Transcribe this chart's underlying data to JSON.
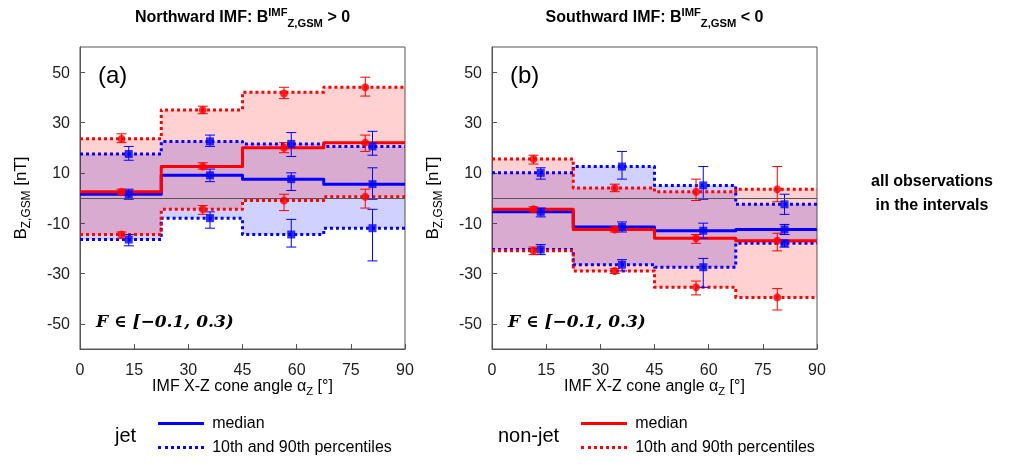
{
  "chart_data": [
    {
      "type": "step",
      "title": "Northward IMF:  B$^{IMF}$$_{Z,GSM}$ > 0",
      "xlabel": "IMF X-Z cone angle α$_{Z}$ [°]",
      "ylabel": "B$_{Z,GSM}$ [nT]",
      "xlim": [
        0,
        90
      ],
      "xticks": [
        0,
        15,
        30,
        45,
        60,
        75,
        90
      ],
      "ylim": [
        -60,
        60
      ],
      "yticks": [
        -50,
        -30,
        -10,
        10,
        30,
        50
      ],
      "grid": false,
      "legend": "bottom",
      "legend_title": "jet",
      "ref_lines": [
        {
          "axis": "y",
          "value": 0,
          "color": "#555555"
        }
      ],
      "annotations": [
        "(a)",
        "F ∈ [−0.1, 0.3)"
      ],
      "series": [
        {
          "name": "median",
          "color": "#0000ff",
          "line_style": "solid",
          "x": [
            0,
            22.5,
            45,
            67.5,
            90
          ],
          "values": [
            1.5,
            9,
            7.5,
            5.5,
            5.5
          ],
          "lower": [
            -16.5,
            -8,
            -14.5,
            -12,
            -12
          ],
          "upper": [
            17.5,
            22.5,
            21.5,
            20.5,
            20.5
          ]
        },
        {
          "name": "10th and 90th percentiles",
          "color": "#0000ff",
          "line_style": "dotted",
          "x": [
            0,
            22.5,
            45,
            67.5,
            90
          ],
          "values": [
            17.5,
            22.5,
            21.5,
            20.5,
            20.5
          ]
        },
        {
          "color": "#0000ff",
          "line_style": "dotted",
          "x": [
            0,
            22.5,
            45,
            67.5,
            90
          ],
          "values": [
            -16.5,
            -8,
            -14.5,
            -12,
            -12
          ]
        },
        {
          "color": "#ff0000",
          "line_style": "solid",
          "x": [
            0,
            22.5,
            45,
            67.5,
            90
          ],
          "values": [
            2.5,
            12.5,
            20,
            22,
            22
          ],
          "lower": [
            -14.5,
            -4.5,
            -1,
            0.5,
            0.5
          ],
          "upper": [
            23.5,
            35,
            42,
            44,
            44
          ]
        },
        {
          "color": "#ff0000",
          "line_style": "dotted",
          "x": [
            0,
            22.5,
            45,
            67.5,
            90
          ],
          "values": [
            23.5,
            35,
            42,
            44,
            44
          ]
        },
        {
          "color": "#ff0000",
          "line_style": "dotted",
          "x": [
            0,
            22.5,
            45,
            67.5,
            90
          ],
          "values": [
            -14.5,
            -4.5,
            -1,
            0.5,
            0.5
          ]
        },
        {
          "type": "scatter",
          "color": "#0000ff",
          "marker": "square",
          "x": [
            13.5,
            13.5,
            13.5,
            36,
            36,
            36,
            58.5,
            58.5,
            58.5,
            81,
            81,
            81
          ],
          "values": [
            1.5,
            17.5,
            -16.5,
            9,
            22.5,
            -8,
            7.5,
            21.5,
            -14.5,
            5.5,
            20.5,
            -12
          ],
          "errors": [
            [
              -0.5,
              3.5
            ],
            [
              15,
              20.5
            ],
            [
              -19,
              -14.5
            ],
            [
              6.5,
              11.5
            ],
            [
              20.5,
              25
            ],
            [
              -12,
              -5.5
            ],
            [
              3,
              10
            ],
            [
              16.5,
              26
            ],
            [
              -19.5,
              -8.5
            ],
            [
              -0.5,
              12
            ],
            [
              17,
              26.5
            ],
            [
              -25,
              -4.5
            ]
          ]
        },
        {
          "type": "scatter",
          "color": "#ff0000",
          "marker": "circle",
          "x": [
            11.5,
            11.5,
            11.5,
            34,
            34,
            34,
            56.5,
            56.5,
            56.5,
            79,
            79,
            79
          ],
          "values": [
            2.5,
            23.5,
            -14.5,
            12.5,
            35,
            -4.5,
            20,
            41.5,
            -1,
            22,
            44,
            0.5
          ],
          "errors": [
            [
              1.5,
              3.5
            ],
            [
              22,
              25.5
            ],
            [
              -16,
              -13.5
            ],
            [
              11.5,
              14
            ],
            [
              33.5,
              36.5
            ],
            [
              -6.5,
              -3
            ],
            [
              18,
              22
            ],
            [
              39.5,
              44
            ],
            [
              -5,
              1.5
            ],
            [
              18.5,
              25
            ],
            [
              40.5,
              48
            ],
            [
              -4,
              3.5
            ]
          ]
        }
      ]
    },
    {
      "type": "step",
      "title": "Southward IMF:  B$^{IMF}$$_{Z,GSM}$ < 0",
      "xlabel": "IMF X-Z cone angle α$_{Z}$ [°]",
      "ylabel": "B$_{Z,GSM}$ [nT]",
      "xlim": [
        0,
        90
      ],
      "xticks": [
        0,
        15,
        30,
        45,
        60,
        75,
        90
      ],
      "ylim": [
        -60,
        60
      ],
      "yticks": [
        -50,
        -30,
        -10,
        10,
        30,
        50
      ],
      "grid": false,
      "legend": "bottom",
      "legend_title": "non-jet",
      "ref_lines": [
        {
          "axis": "y",
          "value": 0,
          "color": "#555555"
        }
      ],
      "annotations": [
        "(b)",
        "F ∈ [−0.1, 0.3)",
        "all observations in the intervals"
      ],
      "series": [
        {
          "color": "#0000ff",
          "line_style": "solid",
          "x": [
            0,
            22.5,
            45,
            67.5,
            90
          ],
          "values": [
            -5.5,
            -11.5,
            -13,
            -12.5,
            -12.5
          ],
          "lower": [
            -20.5,
            -26.5,
            -27.5,
            -18,
            -18
          ],
          "upper": [
            10,
            12.5,
            5,
            -2.5,
            -2.5
          ]
        },
        {
          "color": "#0000ff",
          "line_style": "dotted",
          "x": [
            0,
            22.5,
            45,
            67.5,
            90
          ],
          "values": [
            10,
            12.5,
            5,
            -2.5,
            -2.5
          ]
        },
        {
          "color": "#0000ff",
          "line_style": "dotted",
          "x": [
            0,
            22.5,
            45,
            67.5,
            90
          ],
          "values": [
            -20.5,
            -26.5,
            -27.5,
            -18,
            -18
          ]
        },
        {
          "name": "median",
          "color": "#ff0000",
          "line_style": "solid",
          "x": [
            0,
            22.5,
            45,
            67.5,
            90
          ],
          "values": [
            -4.5,
            -12.5,
            -16,
            -17,
            -17
          ],
          "lower": [
            -21,
            -29,
            -35.5,
            -39.5,
            -39.5
          ],
          "upper": [
            15.5,
            4,
            2.5,
            3.5,
            3.5
          ]
        },
        {
          "name": "10th and 90th percentiles",
          "color": "#ff0000",
          "line_style": "dotted",
          "x": [
            0,
            22.5,
            45,
            67.5,
            90
          ],
          "values": [
            15.5,
            4,
            2.5,
            3.5,
            3.5
          ]
        },
        {
          "color": "#ff0000",
          "line_style": "dotted",
          "x": [
            0,
            22.5,
            45,
            67.5,
            90
          ],
          "values": [
            -21,
            -29,
            -35.5,
            -39.5,
            -39.5
          ]
        },
        {
          "type": "scatter",
          "color": "#0000ff",
          "marker": "square",
          "x": [
            13.5,
            13.5,
            13.5,
            36,
            36,
            36,
            58.5,
            58.5,
            58.5,
            81,
            81,
            81
          ],
          "values": [
            -5.5,
            10,
            -20.5,
            -11.5,
            12.5,
            -26.5,
            -13,
            5,
            -27.5,
            -12.5,
            -2.5,
            -18
          ],
          "errors": [
            [
              -7.5,
              -4
            ],
            [
              7.5,
              12
            ],
            [
              -22.5,
              -18.5
            ],
            [
              -13.5,
              -9.5
            ],
            [
              7.5,
              18.5
            ],
            [
              -29,
              -24.5
            ],
            [
              -16,
              -10
            ],
            [
              -0.5,
              12.5
            ],
            [
              -35.5,
              -24
            ],
            [
              -14.5,
              -10.5
            ],
            [
              -6.5,
              1.5
            ],
            [
              -19.5,
              -17
            ]
          ]
        },
        {
          "type": "scatter",
          "color": "#ff0000",
          "marker": "circle",
          "x": [
            11.5,
            11.5,
            11.5,
            34,
            34,
            34,
            56.5,
            56.5,
            56.5,
            79,
            79,
            79
          ],
          "values": [
            -4.5,
            15.5,
            -21,
            -12.5,
            4,
            -29,
            -16,
            2.5,
            -35.5,
            -17,
            3.5,
            -39.5
          ],
          "errors": [
            [
              -5.5,
              -3.5
            ],
            [
              13.5,
              17
            ],
            [
              -22.5,
              -19.5
            ],
            [
              -13.5,
              -11.5
            ],
            [
              2.5,
              5.5
            ],
            [
              -30,
              -28
            ],
            [
              -18,
              -14.5
            ],
            [
              -1,
              7.5
            ],
            [
              -38.5,
              -33
            ],
            [
              -21,
              -14
            ],
            [
              -1.5,
              12.5
            ],
            [
              -44.5,
              -36
            ]
          ]
        }
      ]
    }
  ]
}
